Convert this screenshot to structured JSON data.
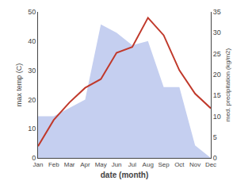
{
  "chart_data": {
    "type": "line",
    "categories": [
      "Jan",
      "Feb",
      "Mar",
      "Apr",
      "May",
      "Jun",
      "Jul",
      "Aug",
      "Sep",
      "Oct",
      "Nov",
      "Dec"
    ],
    "xlabel": "date (month)",
    "ylabel": "max temp (C)",
    "y2label": "med. precipitation (kg/m2)",
    "series": [
      {
        "type": "area",
        "axis": "y2",
        "color": "#c5cff0",
        "values": [
          10,
          10,
          12,
          14,
          32,
          30,
          27,
          28,
          17,
          17,
          3,
          0
        ]
      },
      {
        "type": "line",
        "color": "#c0392b",
        "values": [
          4,
          13,
          19,
          24,
          27,
          36,
          38,
          48,
          42,
          30,
          22,
          17
        ]
      }
    ],
    "ylim": [
      0,
      50
    ],
    "yticks": [
      0,
      10,
      20,
      30,
      40,
      50
    ],
    "y2lim": [
      0,
      35
    ],
    "y2ticks": [
      0,
      5,
      10,
      15,
      20,
      25,
      30,
      35
    ],
    "grid": false
  }
}
